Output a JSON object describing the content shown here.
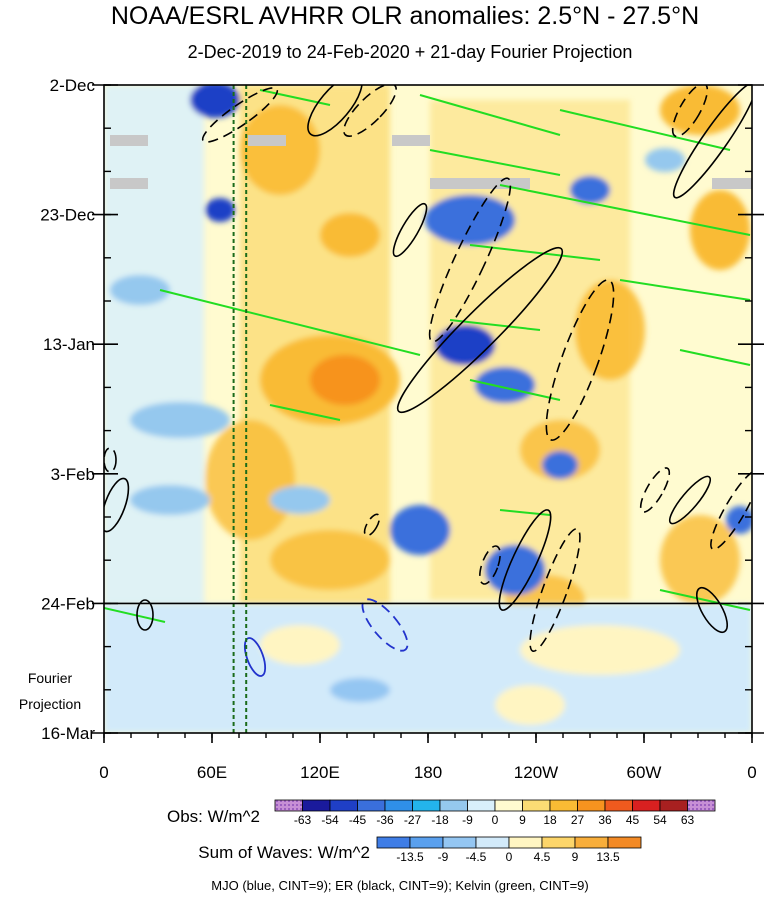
{
  "chart_data": {
    "type": "heatmap",
    "title": "NOAA/ESRL AVHRR OLR anomalies: 2.5°N - 27.5°N",
    "subtitle": "2-Dec-2019 to 24-Feb-2020 + 21-day Fourier Projection",
    "x_axis": {
      "ticks": [
        "0",
        "60E",
        "120E",
        "180",
        "120W",
        "60W",
        "0"
      ],
      "tick_values": [
        0,
        60,
        120,
        180,
        240,
        300,
        360
      ],
      "range": [
        0,
        360
      ]
    },
    "y_axis": {
      "ticks": [
        "2-Dec",
        "23-Dec",
        "13-Jan",
        "3-Feb",
        "24-Feb",
        "16-Mar"
      ],
      "tick_days": [
        0,
        21,
        42,
        63,
        84,
        105
      ],
      "range_days": [
        0,
        105
      ],
      "minor_step_days": 7
    },
    "observation_end_day": 84,
    "projection_label": [
      "Fourier",
      "Projection"
    ],
    "reference_lines_longitude": [
      72,
      79
    ],
    "obs_colorbar": {
      "label": "Obs: W/m^2",
      "levels": [
        "-63",
        "-54",
        "-45",
        "-36",
        "-27",
        "-18",
        "-9",
        "0",
        "9",
        "18",
        "27",
        "36",
        "45",
        "54",
        "63"
      ],
      "colors": [
        "#9b5fc0",
        "#1a1a9c",
        "#1f3fc6",
        "#3a6fdc",
        "#2f8fe8",
        "#23b4ec",
        "#95c8ee",
        "#d9f0fb",
        "#fffbd0",
        "#fbdc74",
        "#f9bb34",
        "#f7931f",
        "#ef5a1e",
        "#d92020",
        "#a82020",
        "#d987c9"
      ]
    },
    "waves_colorbar": {
      "label": "Sum of Waves: W/m^2",
      "levels": [
        "-13.5",
        "-9",
        "-4.5",
        "0",
        "4.5",
        "9",
        "13.5"
      ],
      "colors": [
        "#3f7de6",
        "#5aa0ee",
        "#94c6f2",
        "#d2eafa",
        "#fff5c2",
        "#fcd56a",
        "#f8ae3b",
        "#f38a26"
      ]
    },
    "footnote": "MJO (blue, CINT=9); ER (black, CINT=9); Kelvin (green, CINT=9)"
  }
}
